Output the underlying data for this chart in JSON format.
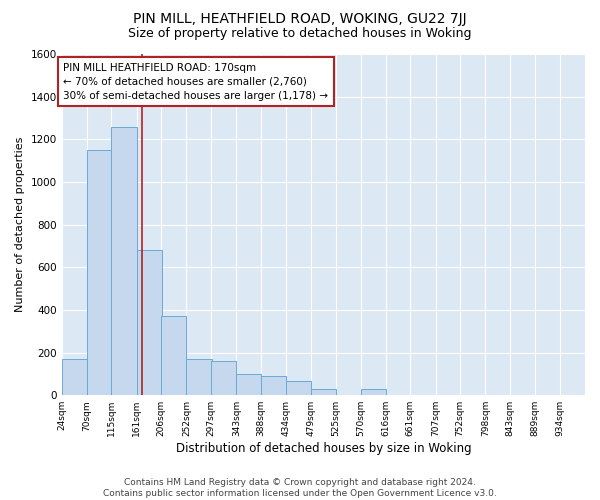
{
  "title": "PIN MILL, HEATHFIELD ROAD, WOKING, GU22 7JJ",
  "subtitle": "Size of property relative to detached houses in Woking",
  "xlabel": "Distribution of detached houses by size in Woking",
  "ylabel": "Number of detached properties",
  "bar_color": "#c5d8ee",
  "bar_edge_color": "#6aaad4",
  "background_color": "#dde8f5",
  "grid_color": "#ffffff",
  "bins": [
    24,
    70,
    115,
    161,
    206,
    252,
    297,
    343,
    388,
    434,
    479,
    525,
    570,
    616,
    661,
    707,
    752,
    798,
    843,
    889,
    934
  ],
  "bar_heights": [
    170,
    1150,
    1260,
    680,
    370,
    170,
    160,
    100,
    90,
    65,
    30,
    0,
    30,
    0,
    0,
    0,
    0,
    0,
    0,
    0
  ],
  "bin_labels": [
    "24sqm",
    "70sqm",
    "115sqm",
    "161sqm",
    "206sqm",
    "252sqm",
    "297sqm",
    "343sqm",
    "388sqm",
    "434sqm",
    "479sqm",
    "525sqm",
    "570sqm",
    "616sqm",
    "661sqm",
    "707sqm",
    "752sqm",
    "798sqm",
    "843sqm",
    "889sqm",
    "934sqm"
  ],
  "property_size": 170,
  "property_line_color": "#b22222",
  "ylim": [
    0,
    1600
  ],
  "yticks": [
    0,
    200,
    400,
    600,
    800,
    1000,
    1200,
    1400,
    1600
  ],
  "annotation_text": "PIN MILL HEATHFIELD ROAD: 170sqm\n← 70% of detached houses are smaller (2,760)\n30% of semi-detached houses are larger (1,178) →",
  "annotation_box_color": "#b22222",
  "footer_text": "Contains HM Land Registry data © Crown copyright and database right 2024.\nContains public sector information licensed under the Open Government Licence v3.0.",
  "title_fontsize": 10,
  "subtitle_fontsize": 9,
  "annotation_fontsize": 7.5,
  "footer_fontsize": 6.5
}
